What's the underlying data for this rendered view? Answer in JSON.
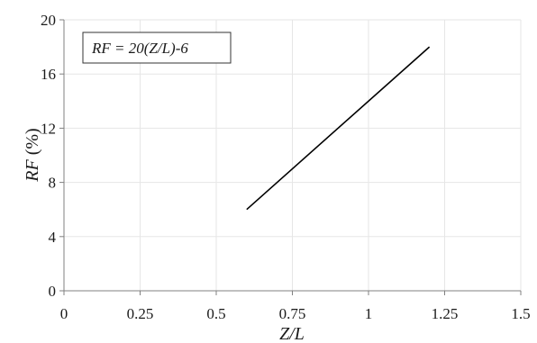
{
  "chart_data": {
    "type": "line",
    "title": "",
    "xlabel": "Z/L",
    "ylabel": "RF (%)",
    "ylabel_parts": {
      "italic": "RF",
      "plain": " (%)"
    },
    "xlim": [
      0,
      1.5
    ],
    "ylim": [
      0,
      20
    ],
    "x_ticks": [
      0,
      0.25,
      0.5,
      0.75,
      1,
      1.25,
      1.5
    ],
    "x_tick_labels": [
      "0",
      "0.25",
      "0.5",
      "0.75",
      "1",
      "1.25",
      "1.5"
    ],
    "y_ticks": [
      0,
      4,
      8,
      12,
      16,
      20
    ],
    "y_tick_labels": [
      "0",
      "4",
      "8",
      "12",
      "16",
      "20"
    ],
    "grid": true,
    "legend": "none",
    "series": [
      {
        "x": [
          0.6,
          1.2
        ],
        "y": [
          6,
          18
        ],
        "color": "#000000"
      }
    ],
    "annotation": {
      "text": "RF = 20(Z/L)-6",
      "placement": "top-left"
    },
    "colors": {
      "grid": "#e6e6e6",
      "axis": "#808080",
      "line": "#000000"
    }
  }
}
